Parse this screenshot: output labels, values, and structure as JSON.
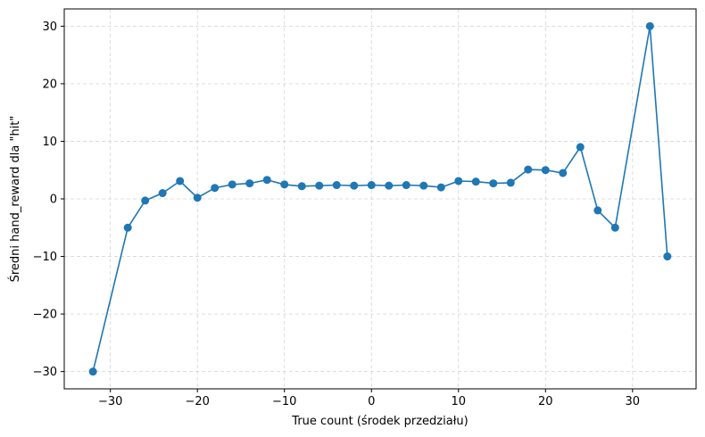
{
  "chart_data": {
    "type": "line",
    "title": "",
    "xlabel": "True count (środek przedziału)",
    "ylabel": "Średni hand_reward dla \"hit\"",
    "xlim": [
      -35.3,
      37.3
    ],
    "ylim": [
      -33.0,
      33.0
    ],
    "xticks": [
      -30,
      -20,
      -10,
      0,
      10,
      20,
      30
    ],
    "yticks": [
      -30,
      -20,
      -10,
      0,
      10,
      20,
      30
    ],
    "xtick_labels": [
      "−30",
      "−20",
      "−10",
      "0",
      "10",
      "20",
      "30"
    ],
    "ytick_labels": [
      "−30",
      "−20",
      "−10",
      "0",
      "10",
      "20",
      "30"
    ],
    "grid": true,
    "legend": "none",
    "series": [
      {
        "color": "#1f77b4",
        "marker": "circle",
        "x": [
          -32,
          -28,
          -26,
          -24,
          -22,
          -20,
          -18,
          -16,
          -14,
          -12,
          -10,
          -8,
          -6,
          -4,
          -2,
          0,
          2,
          4,
          6,
          8,
          10,
          12,
          14,
          16,
          18,
          20,
          22,
          24,
          26,
          28,
          32,
          34
        ],
        "y": [
          -30,
          -5,
          -0.3,
          1.0,
          3.1,
          0.2,
          1.9,
          2.5,
          2.7,
          3.3,
          2.5,
          2.2,
          2.3,
          2.4,
          2.3,
          2.4,
          2.3,
          2.4,
          2.3,
          2.0,
          3.1,
          3.0,
          2.7,
          2.8,
          5.1,
          5.0,
          4.5,
          9.0,
          -2.0,
          -5.0,
          30,
          -10
        ]
      }
    ]
  }
}
